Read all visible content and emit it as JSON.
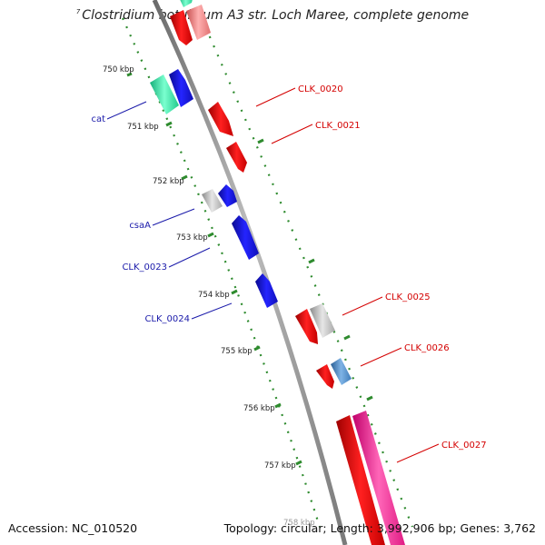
{
  "title": {
    "mark": "7",
    "text": "Clostridium botulinum A3 str. Loch Maree, complete genome"
  },
  "footer": {
    "accession": "Accession: NC_010520",
    "summary": "Topology: circular; Length: 3,992,906 bp; Genes: 3,762"
  },
  "colors": {
    "backbone": "#8a8a8a",
    "tick_dots": "#2e8b2e",
    "forward_label": "#d40000",
    "reverse_label": "#1a1aaa",
    "gene_red": "#ee1111",
    "gene_blue": "#1a1add",
    "gene_grey": "#bcbcbc",
    "gene_green": "#33e0a0",
    "gene_pink": "#ff3399",
    "gene_steel": "#4a8ac8"
  },
  "scale": {
    "unit": "kbp",
    "ticks": [
      "750 kbp",
      "751 kbp",
      "752 kbp",
      "753 kbp",
      "754 kbp",
      "755 kbp",
      "756 kbp",
      "757 kbp",
      "758 kbp"
    ]
  },
  "gene_labels": {
    "forward": [
      "CLK_0020",
      "CLK_0021",
      "CLK_0025",
      "CLK_0026",
      "CLK_0027"
    ],
    "reverse": [
      "cat",
      "csaA",
      "CLK_0023",
      "CLK_0024"
    ]
  }
}
